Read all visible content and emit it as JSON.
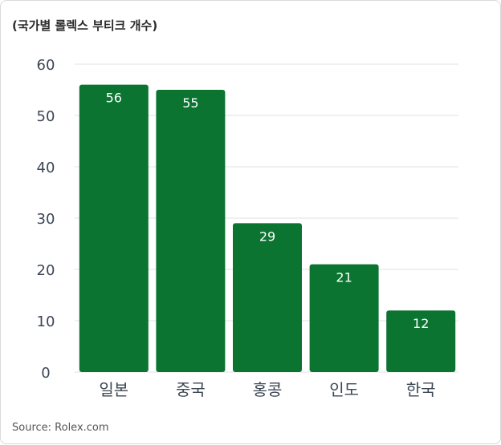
{
  "title": "(국가별 롤렉스 부티크 개수)",
  "source": "Source: Rolex.com",
  "colors": {
    "bar": "#0b7431",
    "grid": "#e2e2e2",
    "axis_text": "#3d4654",
    "label_text": "#ffffff"
  },
  "chart_data": {
    "type": "bar",
    "title": "(국가별 롤렉스 부티크 개수)",
    "xlabel": "",
    "ylabel": "",
    "categories": [
      "일본",
      "중국",
      "홍콩",
      "인도",
      "한국"
    ],
    "values": [
      56,
      55,
      29,
      21,
      12
    ],
    "ylim": [
      0,
      60
    ],
    "yticks": [
      0,
      10,
      20,
      30,
      40,
      50,
      60
    ],
    "grid": true,
    "legend": "none",
    "data_labels": true
  }
}
